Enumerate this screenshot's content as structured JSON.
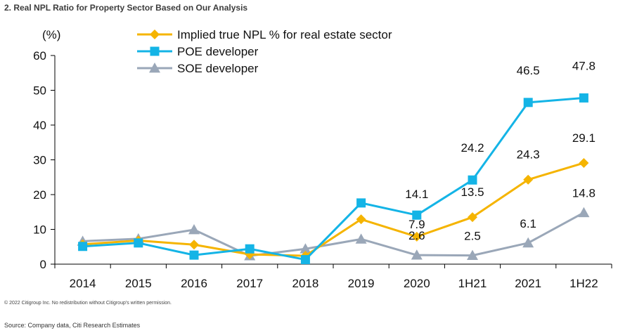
{
  "figure": {
    "title": "2. Real NPL Ratio for Property Sector Based on Our Analysis",
    "copyright": "© 2022 Citigroup Inc. No redistribution without Citigroup's written permission.",
    "source": "Source: Company data, Citi Research Estimates"
  },
  "chart_data": {
    "type": "line",
    "ylabel": "(%)",
    "xlabel": "",
    "ylim": [
      0,
      60
    ],
    "yticks": [
      0,
      10,
      20,
      30,
      40,
      50,
      60
    ],
    "grid": false,
    "legend_position": "top-center",
    "categories": [
      "2014",
      "2015",
      "2016",
      "2017",
      "2018",
      "2019",
      "2020",
      "1H21",
      "2021",
      "1H22"
    ],
    "series": [
      {
        "name": "Implied true NPL % for real estate sector",
        "color": "#f5b400",
        "marker": "diamond",
        "values": [
          5.7,
          6.8,
          5.6,
          2.8,
          2.4,
          12.9,
          7.9,
          13.5,
          24.3,
          29.1
        ],
        "labels": [
          "",
          "",
          "",
          "",
          "",
          "",
          "7.9",
          "13.5",
          "24.3",
          "29.1"
        ]
      },
      {
        "name": "POE developer",
        "color": "#14b4e6",
        "marker": "square",
        "values": [
          5.1,
          6.1,
          2.6,
          4.4,
          1.3,
          17.6,
          14.1,
          24.2,
          46.5,
          47.8
        ],
        "labels": [
          "",
          "",
          "",
          "",
          "",
          "",
          "14.1",
          "24.2",
          "46.5",
          "47.8"
        ]
      },
      {
        "name": "SOE developer",
        "color": "#9aa7b8",
        "marker": "triangle",
        "values": [
          6.6,
          7.3,
          9.9,
          2.4,
          4.4,
          7.2,
          2.6,
          2.5,
          6.1,
          14.8
        ],
        "labels": [
          "",
          "",
          "",
          "",
          "",
          "",
          "2.6",
          "2.5",
          "6.1",
          "14.8"
        ]
      }
    ]
  }
}
